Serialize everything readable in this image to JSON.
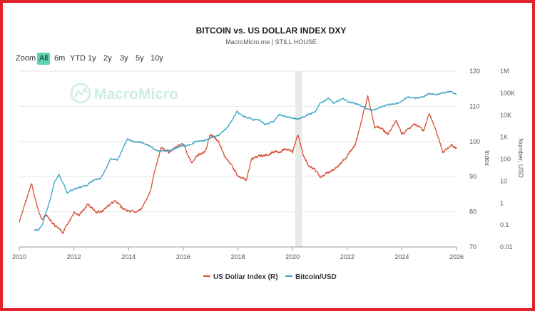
{
  "title": "BITCOIN vs. US DOLLAR INDEX DXY",
  "subtitle": "MacroMicro.me | STILL HOUSE",
  "watermark": "MacroMicro",
  "zoom": {
    "label": "Zoom",
    "buttons": [
      "All",
      "6m",
      "YTD",
      "1y",
      "2y",
      "3y",
      "5y",
      "10y"
    ],
    "active": "All"
  },
  "legend": [
    {
      "name": "US Dollar Index (R)",
      "color": "#d9503a"
    },
    {
      "name": "Bitcoin/USD",
      "color": "#3aa5c7"
    }
  ],
  "chart_data": {
    "type": "line",
    "x_range": [
      2010,
      2026
    ],
    "x_ticks": [
      "2010",
      "2012",
      "2014",
      "2016",
      "2018",
      "2020",
      "2022",
      "2024",
      "2026"
    ],
    "highlight_band": [
      2020.1,
      2020.35
    ],
    "index_axis": {
      "label": "Index",
      "range": [
        70,
        120
      ],
      "ticks": [
        "120",
        "110",
        "100",
        "90",
        "80",
        "70"
      ]
    },
    "bitcoin_axis": {
      "label": "Number, USD",
      "scale": "log",
      "range": [
        0.01,
        1000000
      ],
      "ticks": [
        "1M",
        "100K",
        "10K",
        "1K",
        "100",
        "10",
        "1",
        "0.1",
        "0.01"
      ]
    },
    "grid": true,
    "legend_position": "bottom",
    "series": [
      {
        "name": "US Dollar Index (R)",
        "axis": "index",
        "color": "#d9503a",
        "x": [
          2010.0,
          2010.2,
          2010.45,
          2010.6,
          2010.8,
          2011.0,
          2011.3,
          2011.6,
          2011.8,
          2012.0,
          2012.2,
          2012.5,
          2012.8,
          2013.0,
          2013.3,
          2013.5,
          2013.8,
          2014.0,
          2014.3,
          2014.5,
          2014.8,
          2015.0,
          2015.2,
          2015.5,
          2015.8,
          2016.0,
          2016.3,
          2016.5,
          2016.8,
          2017.0,
          2017.3,
          2017.5,
          2017.8,
          2018.0,
          2018.3,
          2018.5,
          2018.8,
          2019.0,
          2019.3,
          2019.5,
          2019.8,
          2020.0,
          2020.2,
          2020.4,
          2020.6,
          2020.8,
          2021.0,
          2021.3,
          2021.5,
          2021.8,
          2022.0,
          2022.3,
          2022.5,
          2022.75,
          2023.0,
          2023.2,
          2023.5,
          2023.8,
          2024.0,
          2024.3,
          2024.5,
          2024.8,
          2025.0,
          2025.2,
          2025.5,
          2025.8,
          2026.0
        ],
        "y": [
          77,
          82,
          88,
          83,
          78,
          79,
          76,
          74,
          77,
          80,
          79,
          82,
          80,
          80,
          82,
          83,
          81,
          80,
          80,
          81,
          86,
          93,
          98,
          97,
          99,
          99,
          94,
          96,
          97,
          102,
          100,
          96,
          93,
          90,
          89,
          95,
          96,
          96,
          97,
          97,
          98,
          97,
          102,
          96,
          93,
          92,
          90,
          91,
          92,
          94,
          96,
          99,
          105,
          113,
          104,
          104,
          102,
          106,
          102,
          104,
          105,
          103,
          108,
          104,
          97,
          99,
          98
        ]
      },
      {
        "name": "Bitcoin/USD",
        "axis": "bitcoin",
        "color": "#3aa5c7",
        "x": [
          2010.55,
          2010.7,
          2010.85,
          2010.95,
          2011.1,
          2011.3,
          2011.45,
          2011.6,
          2011.75,
          2011.95,
          2012.2,
          2012.5,
          2012.75,
          2013.0,
          2013.2,
          2013.35,
          2013.6,
          2013.8,
          2013.95,
          2014.2,
          2014.5,
          2014.8,
          2015.0,
          2015.3,
          2015.6,
          2015.9,
          2016.2,
          2016.5,
          2016.8,
          2017.0,
          2017.3,
          2017.6,
          2017.8,
          2017.96,
          2018.2,
          2018.5,
          2018.8,
          2019.0,
          2019.3,
          2019.5,
          2019.8,
          2020.0,
          2020.2,
          2020.5,
          2020.8,
          2021.0,
          2021.3,
          2021.5,
          2021.85,
          2022.0,
          2022.4,
          2022.7,
          2022.95,
          2023.2,
          2023.5,
          2023.8,
          2024.0,
          2024.2,
          2024.5,
          2024.8,
          2025.0,
          2025.3,
          2025.6,
          2025.8,
          2026.0
        ],
        "y": [
          0.06,
          0.06,
          0.1,
          0.3,
          1,
          10,
          20,
          8,
          3,
          4,
          5,
          7,
          11,
          14,
          40,
          110,
          90,
          300,
          800,
          600,
          550,
          380,
          250,
          240,
          260,
          400,
          420,
          650,
          700,
          950,
          1200,
          2700,
          6000,
          15000,
          9000,
          6500,
          6000,
          3800,
          5000,
          11000,
          8000,
          7500,
          6500,
          9500,
          13000,
          33000,
          58000,
          35000,
          60000,
          42000,
          30000,
          20000,
          16500,
          23000,
          30000,
          35000,
          43000,
          65000,
          60000,
          68000,
          95000,
          85000,
          110000,
          115000,
          90000
        ]
      }
    ]
  }
}
